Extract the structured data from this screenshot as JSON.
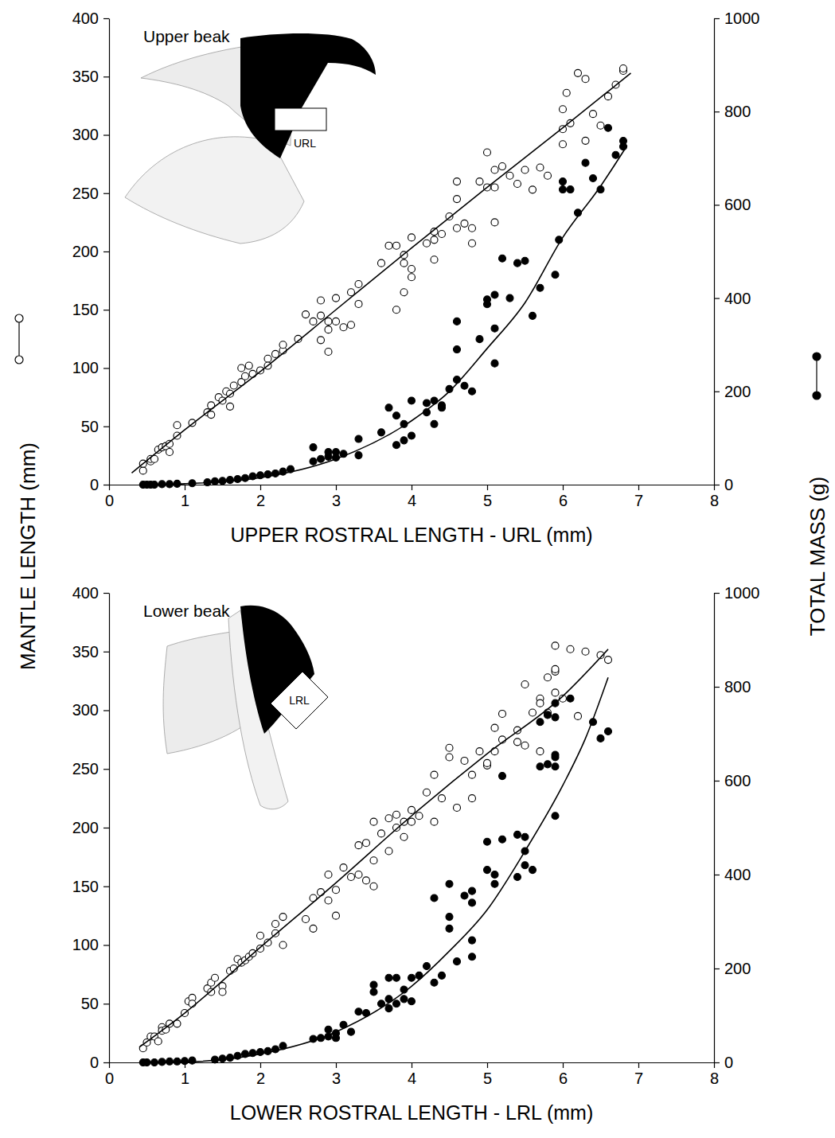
{
  "chart_data": [
    {
      "type": "scatter",
      "title": "Upper beak",
      "x_label": "UPPER ROSTRAL LENGTH - URL (mm)",
      "y_label": "MANTLE LENGTH (mm)",
      "y2_label": "TOTAL MASS (g)",
      "annotations": [
        "URL"
      ],
      "xlim": [
        0,
        8
      ],
      "xticks": [
        0,
        1,
        2,
        3,
        4,
        5,
        6,
        7,
        8
      ],
      "ylim": [
        0,
        400
      ],
      "yticks": [
        0,
        50,
        100,
        150,
        200,
        250,
        300,
        350,
        400
      ],
      "y2lim": [
        0,
        1000
      ],
      "y2ticks": [
        0,
        200,
        400,
        600,
        800,
        1000
      ],
      "series": [
        {
          "type": "scatter",
          "marker": "open-circle",
          "color": "#000000",
          "x": [
            0.45,
            0.45,
            0.55,
            0.55,
            0.6,
            0.65,
            0.7,
            0.75,
            0.8,
            0.8,
            0.9,
            0.9,
            1.1,
            1.3,
            1.35,
            1.35,
            1.45,
            1.5,
            1.55,
            1.6,
            1.6,
            1.65,
            1.75,
            1.75,
            1.8,
            1.85,
            1.9,
            2.0,
            2.1,
            2.1,
            2.2,
            2.3,
            2.3,
            2.5,
            2.6,
            2.7,
            2.8,
            2.8,
            2.8,
            2.9,
            2.9,
            2.9,
            3.0,
            3.0,
            3.1,
            3.2,
            3.2,
            3.3,
            3.3,
            3.6,
            3.7,
            3.8,
            3.8,
            3.9,
            3.9,
            3.9,
            4.0,
            4.0,
            4.0,
            4.2,
            4.3,
            4.3,
            4.3,
            4.4,
            4.5,
            4.6,
            4.6,
            4.6,
            4.7,
            4.8,
            4.8,
            4.9,
            5.0,
            5.0,
            5.1,
            5.1,
            5.1,
            5.2,
            5.3,
            5.4,
            5.5,
            5.6,
            5.7,
            5.8,
            6.0,
            6.0,
            6.0,
            6.05,
            6.1,
            6.2,
            6.3,
            6.3,
            6.4,
            6.5,
            6.6,
            6.7,
            6.8,
            6.8
          ],
          "values": [
            12,
            18,
            20,
            22,
            22,
            30,
            32,
            33,
            28,
            35,
            42,
            51,
            53,
            62,
            68,
            60,
            75,
            72,
            80,
            78,
            67,
            85,
            100,
            88,
            93,
            102,
            95,
            98,
            108,
            102,
            112,
            115,
            120,
            125,
            146,
            140,
            124,
            158,
            145,
            140,
            133,
            114,
            160,
            140,
            135,
            137,
            165,
            172,
            155,
            190,
            205,
            150,
            205,
            165,
            197,
            190,
            212,
            185,
            178,
            207,
            210,
            217,
            193,
            215,
            230,
            260,
            245,
            220,
            224,
            207,
            220,
            260,
            285,
            255,
            270,
            255,
            225,
            273,
            265,
            258,
            270,
            253,
            272,
            265,
            292,
            305,
            322,
            336,
            310,
            353,
            348,
            295,
            318,
            308,
            333,
            343,
            355,
            357
          ]
        },
        {
          "type": "scatter",
          "marker": "filled-circle",
          "color": "#000000",
          "axis": "y2",
          "x": [
            0.45,
            0.5,
            0.55,
            0.6,
            0.7,
            0.8,
            0.9,
            1.1,
            1.3,
            1.4,
            1.5,
            1.6,
            1.7,
            1.8,
            1.9,
            2.0,
            2.1,
            2.2,
            2.3,
            2.4,
            2.7,
            2.7,
            2.8,
            2.9,
            2.9,
            3.0,
            3.0,
            3.1,
            3.3,
            3.3,
            3.6,
            3.7,
            3.8,
            3.8,
            3.9,
            3.9,
            4.0,
            4.0,
            4.2,
            4.2,
            4.3,
            4.3,
            4.4,
            4.4,
            4.5,
            4.6,
            4.6,
            4.6,
            4.7,
            4.8,
            4.9,
            5.0,
            5.0,
            5.1,
            5.1,
            5.1,
            5.2,
            5.3,
            5.4,
            5.5,
            5.6,
            5.7,
            5.9,
            5.95,
            6.0,
            6.0,
            6.1,
            6.2,
            6.3,
            6.4,
            6.5,
            6.6,
            6.7,
            6.8,
            6.8
          ],
          "values": [
            0,
            0,
            0,
            0,
            1,
            1,
            2,
            3,
            5,
            7,
            8,
            10,
            12,
            14,
            18,
            20,
            22,
            24,
            28,
            33,
            50,
            80,
            55,
            60,
            70,
            70,
            58,
            66,
            63,
            98,
            112,
            165,
            85,
            148,
            130,
            95,
            105,
            180,
            155,
            175,
            130,
            180,
            165,
            170,
            205,
            225,
            290,
            350,
            212,
            200,
            312,
            397,
            387,
            407,
            335,
            260,
            485,
            400,
            475,
            480,
            362,
            422,
            450,
            525,
            650,
            633,
            633,
            583,
            690,
            657,
            633,
            765,
            707,
            737,
            725
          ]
        },
        {
          "type": "line",
          "line_style": "solid",
          "color": "#000000",
          "x": [
            0.3,
            1,
            2,
            3,
            4,
            5,
            6,
            6.9
          ],
          "values": [
            10,
            47,
            97,
            150,
            203,
            255,
            306,
            353
          ]
        },
        {
          "type": "line",
          "line_style": "solid",
          "color": "#000000",
          "axis": "y2",
          "x": [
            0.4,
            1,
            2,
            3,
            4,
            4.5,
            5,
            5.5,
            6,
            6.5,
            6.85
          ],
          "values": [
            0,
            2,
            15,
            55,
            137,
            200,
            292,
            390,
            530,
            640,
            727
          ]
        }
      ]
    },
    {
      "type": "scatter",
      "title": "Lower beak",
      "x_label": "LOWER ROSTRAL LENGTH - LRL (mm)",
      "annotations": [
        "LRL"
      ],
      "xlim": [
        0,
        8
      ],
      "xticks": [
        0,
        1,
        2,
        3,
        4,
        5,
        6,
        7,
        8
      ],
      "ylim": [
        0,
        400
      ],
      "yticks": [
        0,
        50,
        100,
        150,
        200,
        250,
        300,
        350,
        400
      ],
      "y2lim": [
        0,
        1000
      ],
      "y2ticks": [
        0,
        200,
        400,
        600,
        800,
        1000
      ],
      "series": [
        {
          "type": "scatter",
          "marker": "open-circle",
          "color": "#000000",
          "x": [
            0.45,
            0.5,
            0.55,
            0.6,
            0.65,
            0.7,
            0.7,
            0.75,
            0.8,
            0.9,
            1.0,
            1.05,
            1.1,
            1.1,
            1.3,
            1.35,
            1.35,
            1.4,
            1.5,
            1.5,
            1.6,
            1.65,
            1.7,
            1.75,
            1.8,
            1.85,
            1.9,
            2.0,
            2.0,
            2.1,
            2.2,
            2.2,
            2.3,
            2.3,
            2.6,
            2.7,
            2.7,
            2.8,
            2.9,
            2.9,
            3.0,
            3.0,
            3.1,
            3.2,
            3.3,
            3.3,
            3.4,
            3.4,
            3.5,
            3.5,
            3.5,
            3.6,
            3.7,
            3.7,
            3.8,
            3.8,
            3.9,
            3.9,
            4.0,
            4.0,
            4.1,
            4.2,
            4.3,
            4.3,
            4.4,
            4.5,
            4.5,
            4.6,
            4.7,
            4.8,
            4.8,
            4.9,
            5.0,
            5.0,
            5.1,
            5.1,
            5.2,
            5.2,
            5.4,
            5.4,
            5.5,
            5.5,
            5.6,
            5.7,
            5.7,
            5.7,
            5.8,
            5.8,
            5.9,
            5.9,
            5.9,
            5.9,
            6.0,
            6.1,
            6.2,
            6.3,
            6.5,
            6.6
          ],
          "values": [
            12,
            17,
            22,
            22,
            18,
            30,
            27,
            28,
            33,
            33,
            42,
            52,
            55,
            50,
            63,
            68,
            60,
            72,
            65,
            60,
            78,
            80,
            88,
            85,
            87,
            90,
            93,
            108,
            97,
            102,
            110,
            118,
            124,
            100,
            122,
            114,
            140,
            145,
            160,
            138,
            125,
            147,
            166,
            158,
            185,
            160,
            187,
            155,
            205,
            172,
            150,
            195,
            208,
            180,
            211,
            200,
            205,
            192,
            205,
            215,
            210,
            230,
            245,
            205,
            225,
            268,
            260,
            217,
            257,
            225,
            245,
            265,
            253,
            255,
            265,
            285,
            297,
            275,
            283,
            273,
            322,
            270,
            298,
            310,
            306,
            265,
            328,
            298,
            355,
            333,
            335,
            315,
            310,
            352,
            295,
            350,
            347,
            343
          ]
        },
        {
          "type": "scatter",
          "marker": "filled-circle",
          "color": "#000000",
          "axis": "y2",
          "x": [
            0.45,
            0.5,
            0.6,
            0.7,
            0.8,
            0.9,
            1.0,
            1.1,
            1.4,
            1.5,
            1.6,
            1.7,
            1.8,
            1.9,
            2.0,
            2.1,
            2.2,
            2.3,
            2.7,
            2.8,
            2.9,
            2.9,
            3.0,
            3.0,
            3.1,
            3.2,
            3.3,
            3.4,
            3.5,
            3.5,
            3.6,
            3.7,
            3.7,
            3.7,
            3.8,
            3.8,
            3.9,
            3.9,
            4.0,
            4.0,
            4.1,
            4.2,
            4.3,
            4.3,
            4.4,
            4.5,
            4.5,
            4.5,
            4.6,
            4.7,
            4.8,
            4.8,
            4.8,
            4.8,
            5.0,
            5.0,
            5.1,
            5.1,
            5.2,
            5.2,
            5.4,
            5.4,
            5.5,
            5.5,
            5.5,
            5.6,
            5.7,
            5.7,
            5.8,
            5.8,
            5.9,
            5.9,
            5.9,
            5.9,
            5.9,
            5.9,
            6.1,
            6.4,
            6.5,
            6.6
          ],
          "values": [
            0,
            0,
            0,
            1,
            2,
            2,
            3,
            4,
            6,
            8,
            10,
            14,
            18,
            20,
            22,
            24,
            28,
            35,
            50,
            52,
            55,
            70,
            62,
            52,
            80,
            65,
            108,
            105,
            165,
            150,
            125,
            180,
            135,
            115,
            180,
            125,
            155,
            135,
            180,
            130,
            185,
            205,
            350,
            170,
            185,
            380,
            310,
            285,
            215,
            355,
            365,
            340,
            260,
            225,
            470,
            410,
            400,
            380,
            475,
            610,
            485,
            395,
            480,
            420,
            450,
            410,
            630,
            725,
            635,
            740,
            765,
            735,
            655,
            650,
            630,
            525,
            775,
            725,
            690,
            705
          ]
        },
        {
          "type": "line",
          "line_style": "solid",
          "color": "#000000",
          "x": [
            0.4,
            1,
            2,
            3,
            4,
            5,
            6,
            6.6
          ],
          "values": [
            13,
            42,
            98,
            153,
            210,
            263,
            312,
            352
          ]
        },
        {
          "type": "line",
          "line_style": "solid",
          "color": "#000000",
          "axis": "y2",
          "x": [
            0.4,
            1,
            2,
            3,
            4,
            4.5,
            5,
            5.5,
            6,
            6.3,
            6.6
          ],
          "values": [
            0,
            1,
            18,
            65,
            162,
            237,
            325,
            450,
            590,
            690,
            820
          ]
        }
      ]
    }
  ]
}
